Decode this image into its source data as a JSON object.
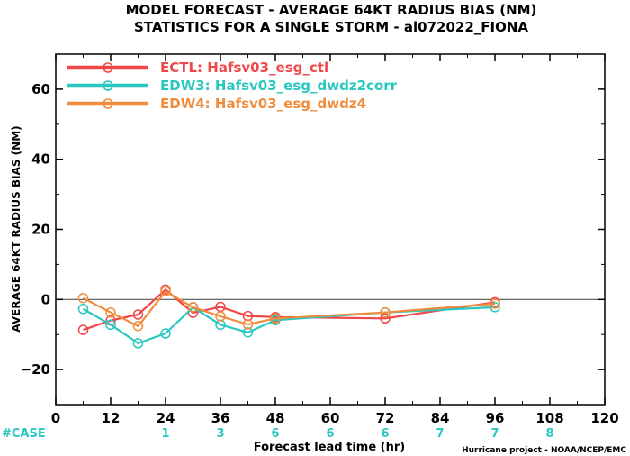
{
  "chart_data": {
    "type": "line",
    "title": [
      "MODEL FORECAST - AVERAGE 64KT RADIUS BIAS (NM)",
      "STATISTICS FOR A SINGLE STORM - al072022_FIONA"
    ],
    "xlabel": "Forecast lead time (hr)",
    "ylabel": "AVERAGE 64KT RADIUS BIAS (NM)",
    "xlim": [
      0,
      120
    ],
    "ylim": [
      -30,
      70
    ],
    "x_ticks": [
      "0",
      "12",
      "24",
      "36",
      "48",
      "60",
      "72",
      "84",
      "96",
      "108",
      "120"
    ],
    "y_ticks": [
      "60",
      "40",
      "20",
      "0",
      "−20"
    ],
    "zero_line": true,
    "grid": false,
    "legend_position": "top-left",
    "series": [
      {
        "name": "ECTL: Hafsv03_esg_ctl",
        "color": "#f04848",
        "x": [
          6,
          12,
          18,
          24,
          30,
          36,
          42,
          48,
          72,
          96
        ],
        "y": [
          -8.7,
          -6.0,
          -4.3,
          2.8,
          -3.8,
          -2.1,
          -4.7,
          -5.0,
          -5.4,
          -0.8
        ]
      },
      {
        "name": "EDW3: Hafsv03_esg_dwdz2corr",
        "color": "#28c8c0",
        "x": [
          6,
          12,
          18,
          24,
          30,
          36,
          42,
          48,
          72,
          96
        ],
        "y": [
          -2.7,
          -7.2,
          -12.5,
          -9.7,
          -2.2,
          -7.2,
          -9.4,
          -5.9,
          -3.7,
          -2.2
        ]
      },
      {
        "name": "EDW4: Hafsv03_esg_dwdz4",
        "color": "#f08c3c",
        "x": [
          6,
          12,
          18,
          24,
          30,
          36,
          42,
          48,
          72,
          96
        ],
        "y": [
          0.4,
          -3.7,
          -7.6,
          2.3,
          -2.2,
          -4.8,
          -7.1,
          -5.4,
          -3.7,
          -1.2
        ]
      }
    ],
    "case_label": "#CASE",
    "case_color": "#28c8c0",
    "cases": [
      {
        "x": 24,
        "label": "1"
      },
      {
        "x": 36,
        "label": "3"
      },
      {
        "x": 48,
        "label": "6"
      },
      {
        "x": 60,
        "label": "6"
      },
      {
        "x": 72,
        "label": "6"
      },
      {
        "x": 84,
        "label": "7"
      },
      {
        "x": 96,
        "label": "7"
      },
      {
        "x": 108,
        "label": "8"
      }
    ],
    "credit": "Hurricane project - NOAA/NCEP/EMC"
  }
}
